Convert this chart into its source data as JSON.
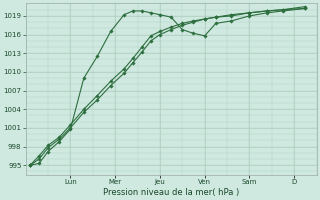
{
  "bg_color": "#cfe8e0",
  "grid_color": "#b0d0c0",
  "line_color": "#2d6e3e",
  "marker_color": "#2d6e3e",
  "xlabel": "Pression niveau de la mer( hPa )",
  "ylim": [
    993.5,
    1021.0
  ],
  "yticks": [
    995,
    998,
    1001,
    1004,
    1007,
    1010,
    1013,
    1016,
    1019
  ],
  "day_labels": [
    "Lun",
    "Mer",
    "Jeu",
    "Ven",
    "Sam",
    "D"
  ],
  "day_positions": [
    2,
    4,
    6,
    8,
    10,
    12
  ],
  "xlim": [
    0,
    13
  ],
  "series1_x": [
    0.2,
    0.6,
    1.0,
    1.5,
    2.0,
    2.6,
    3.2,
    3.8,
    4.4,
    4.8,
    5.2,
    5.6,
    6.0,
    6.5,
    7.0,
    7.5,
    8.0,
    8.5,
    9.2,
    10.0,
    10.8,
    11.5,
    12.5
  ],
  "series1_y": [
    995.0,
    995.3,
    997.2,
    998.8,
    1000.8,
    1009.0,
    1012.5,
    1016.5,
    1019.2,
    1019.8,
    1019.8,
    1019.5,
    1019.2,
    1018.8,
    1016.8,
    1016.2,
    1015.8,
    1017.8,
    1018.2,
    1019.0,
    1019.5,
    1019.8,
    1020.2
  ],
  "series2_x": [
    0.2,
    0.6,
    1.0,
    1.5,
    2.0,
    2.6,
    3.2,
    3.8,
    4.4,
    4.8,
    5.2,
    5.6,
    6.0,
    6.5,
    7.0,
    7.5,
    8.0,
    8.5,
    9.2,
    10.0,
    10.8,
    11.5,
    12.5
  ],
  "series2_y": [
    995.0,
    996.5,
    998.2,
    999.5,
    1001.5,
    1004.0,
    1006.2,
    1008.5,
    1010.5,
    1012.2,
    1014.0,
    1015.8,
    1016.5,
    1017.2,
    1017.8,
    1018.2,
    1018.5,
    1018.8,
    1019.2,
    1019.5,
    1019.8,
    1020.0,
    1020.2
  ],
  "series3_x": [
    0.2,
    0.6,
    1.0,
    1.5,
    2.0,
    2.6,
    3.2,
    3.8,
    4.4,
    4.8,
    5.2,
    5.6,
    6.0,
    6.5,
    7.0,
    7.5,
    8.0,
    8.5,
    9.2,
    10.0,
    10.8,
    11.5,
    12.5
  ],
  "series3_y": [
    995.0,
    996.0,
    997.8,
    999.2,
    1001.0,
    1003.5,
    1005.5,
    1007.8,
    1009.8,
    1011.5,
    1013.2,
    1015.0,
    1016.0,
    1016.8,
    1017.5,
    1018.0,
    1018.5,
    1018.8,
    1019.0,
    1019.5,
    1019.8,
    1020.0,
    1020.5
  ]
}
